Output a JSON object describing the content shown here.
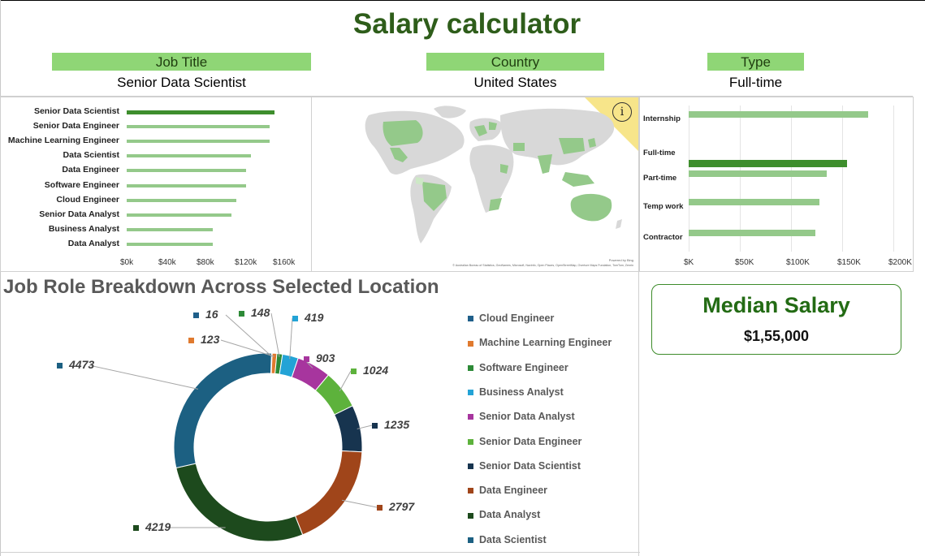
{
  "title": "Salary calculator",
  "filters": {
    "job_title_label": "Job Title",
    "job_title_value": "Senior Data Scientist",
    "country_label": "Country",
    "country_value": "United States",
    "type_label": "Type",
    "type_value": "Full-time"
  },
  "colors": {
    "accent_green": "#8fd676",
    "bar_light": "#94c98a",
    "bar_dark": "#3e8e2d",
    "title_green": "#2e5d1a"
  },
  "map": {
    "info_icon": "i",
    "credit_line1": "Powered by Bing",
    "credit_line2": "© Australian Bureau of Statistics, GeoNames, Microsoft, Navinfo, Open Places, OpenStreetMap, Overture Maps Fundation, TomTom, Zenrin"
  },
  "breakdown_title": "Job Role Breakdown Across Selected Location",
  "median": {
    "title": "Median Salary",
    "value": "$1,55,000"
  },
  "chart_data": [
    {
      "type": "bar",
      "orientation": "horizontal",
      "categories": [
        "Senior Data Scientist",
        "Senior Data Engineer",
        "Machine Learning Engineer",
        "Data Scientist",
        "Data Engineer",
        "Software Engineer",
        "Cloud Engineer",
        "Senior Data Analyst",
        "Business Analyst",
        "Data Analyst"
      ],
      "values": [
        155000,
        150000,
        150000,
        130000,
        125000,
        125000,
        115000,
        110000,
        90000,
        90000
      ],
      "highlight": "Senior Data Scientist",
      "ticks": [
        "$0k",
        "$40k",
        "$80k",
        "$120k",
        "$160k"
      ],
      "xlim": [
        0,
        180000
      ],
      "grid": false
    },
    {
      "type": "bar",
      "orientation": "horizontal",
      "categories": [
        "Internship",
        "Full-time",
        "Part-time",
        "Temp work",
        "Contractor"
      ],
      "values": [
        175000,
        155000,
        135000,
        128000,
        124000
      ],
      "highlight": "Full-time",
      "ticks": [
        "$K",
        "$50K",
        "$100K",
        "$150K",
        "$200K"
      ],
      "xlim": [
        0,
        200000
      ],
      "grid": true
    },
    {
      "type": "pie",
      "variant": "donut",
      "categories": [
        "Cloud Engineer",
        "Machine Learning Engineer",
        "Software Engineer",
        "Business Analyst",
        "Senior Data Analyst",
        "Senior Data Engineer",
        "Senior Data Scientist",
        "Data Engineer",
        "Data Analyst",
        "Data Scientist"
      ],
      "values": [
        16,
        123,
        148,
        419,
        903,
        1024,
        1235,
        2797,
        4219,
        4473
      ],
      "colors": [
        "#1f5f8a",
        "#e07a2f",
        "#2d8a37",
        "#23a3d6",
        "#a7359e",
        "#5db23c",
        "#17344f",
        "#a0451a",
        "#1d4a1d",
        "#1c6082"
      ],
      "legend": "right"
    }
  ]
}
